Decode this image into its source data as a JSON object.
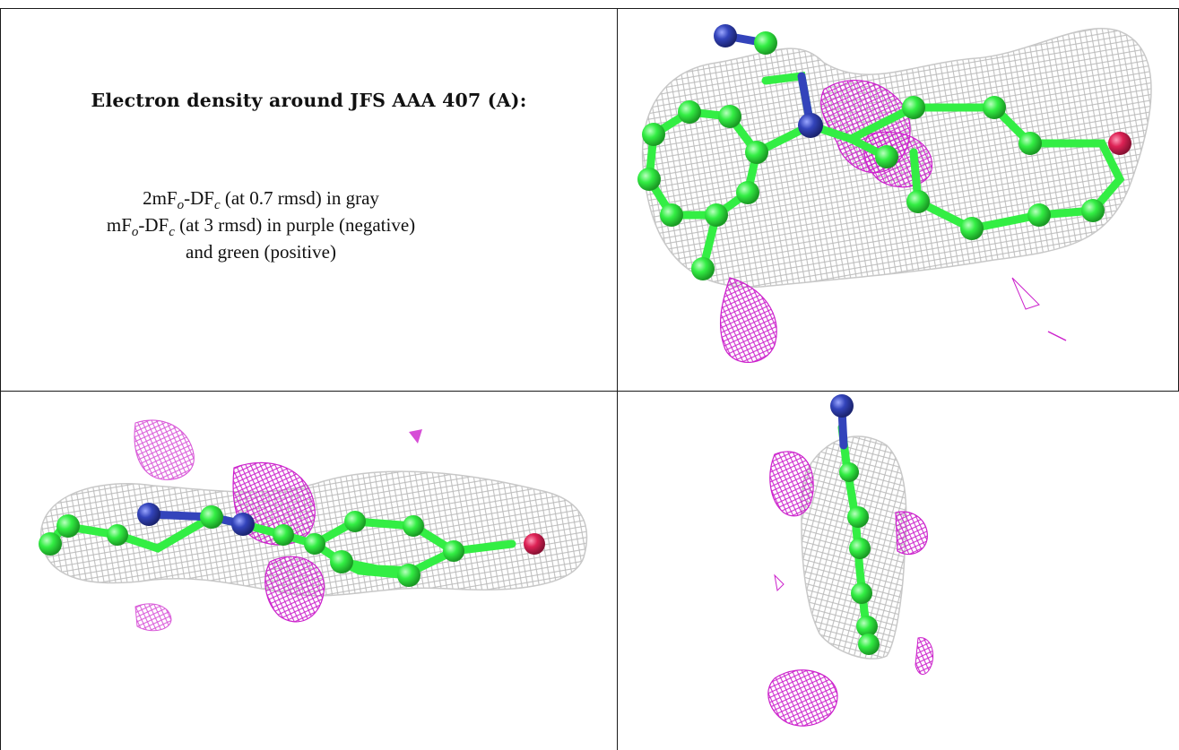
{
  "caption": {
    "title": "Electron density around JFS AAA 407 (A):",
    "line1": {
      "pre": "2mF",
      "sub1": "o",
      "mid": "-DF",
      "sub2": "c",
      "post": " (at 0.7 rmsd) in gray"
    },
    "line2": {
      "pre": "mF",
      "sub1": "o",
      "mid": "-DF",
      "sub2": "c",
      "post": " (at 3 rmsd) in purple (negative)"
    },
    "line3": "and green (positive)"
  },
  "colors": {
    "mesh_gray": "#b8b8b8",
    "mesh_purple": "#cc22cc",
    "carbon": "#33ee44",
    "nitrogen": "#3344bb",
    "oxygen": "#dd2255",
    "rules": "#1a1a1a"
  },
  "panels": [
    "view-top-right",
    "view-bottom-left",
    "view-bottom-right"
  ]
}
